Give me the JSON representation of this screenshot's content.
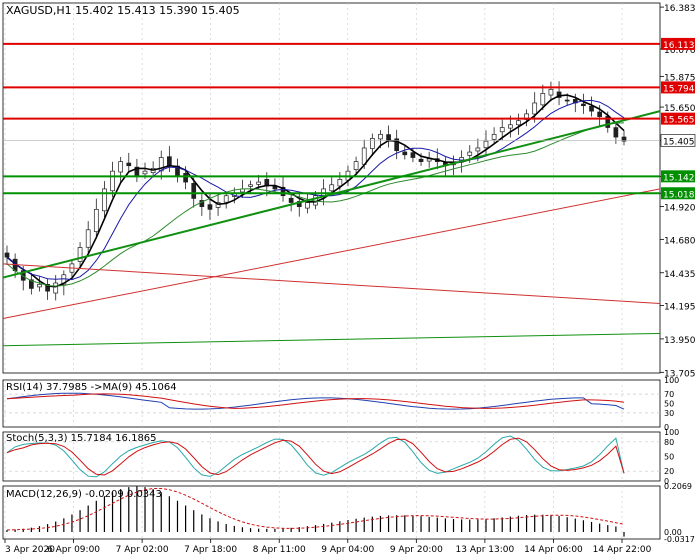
{
  "chart_data": {
    "type": "line",
    "title": "XAGUSD,H1  15.402 15.413 15.390 15.405",
    "price_panel": {
      "ylim": [
        13.7,
        16.413
      ],
      "y_ticks": [
        "16.383",
        "16.076",
        "15.875",
        "15.650",
        "15.405",
        "15.142",
        "15.018",
        "14.920",
        "14.680",
        "14.435",
        "14.195",
        "13.950",
        "13.705"
      ],
      "current_price": "15.405",
      "horizontal_levels": [
        {
          "price": 16.113,
          "label": "16.113",
          "color": "#e00000"
        },
        {
          "price": 15.794,
          "label": "15.794",
          "color": "#e00000"
        },
        {
          "price": 15.565,
          "label": "15.565",
          "color": "#e00000"
        },
        {
          "price": 15.142,
          "label": "15.142",
          "color": "#009000"
        },
        {
          "price": 15.018,
          "label": "15.018",
          "color": "#009000"
        }
      ],
      "close_series": [
        14.55,
        14.45,
        14.38,
        14.32,
        14.35,
        14.3,
        14.36,
        14.42,
        14.5,
        14.62,
        14.75,
        14.9,
        15.05,
        15.18,
        15.25,
        15.22,
        15.15,
        15.18,
        15.2,
        15.28,
        15.22,
        15.15,
        15.1,
        14.98,
        14.92,
        14.9,
        14.95,
        15.0,
        15.02,
        15.05,
        15.08,
        15.1,
        15.07,
        15.05,
        15.0,
        14.95,
        14.92,
        14.95,
        15.0,
        15.05,
        15.08,
        15.12,
        15.18,
        15.25,
        15.35,
        15.42,
        15.45,
        15.4,
        15.33,
        15.3,
        15.28,
        15.25,
        15.27,
        15.25,
        15.22,
        15.24,
        15.28,
        15.32,
        15.35,
        15.4,
        15.45,
        15.5,
        15.52,
        15.55,
        15.6,
        15.68,
        15.75,
        15.78,
        15.72,
        15.7,
        15.68,
        15.66,
        15.62,
        15.58,
        15.5,
        15.43,
        15.4
      ],
      "ma_black_start": [
        14.4,
        14.6
      ],
      "trendlines": [
        {
          "color": "#109010",
          "from_price": 14.4,
          "to_price": 15.62
        },
        {
          "color": "#d03030",
          "from_price": 14.5,
          "to_price": 14.21
        },
        {
          "color": "#d03030",
          "from_price": 14.1,
          "to_price": 15.05
        },
        {
          "color": "#109010",
          "from_price": 13.9,
          "to_price": 13.99
        }
      ]
    },
    "rsi": {
      "label": "RSI(14) 37.7985  ->MA(9) 45.1064",
      "ylim": [
        0,
        100
      ],
      "ticks": [
        "100",
        "70",
        "50",
        "30",
        "0"
      ],
      "levels": [
        70,
        30
      ],
      "rsi_last": 37.7985,
      "ma_last": 45.1064
    },
    "stoch": {
      "label": "Stoch(5,3,3) 15.7184 16.1865",
      "ylim": [
        0,
        100
      ],
      "ticks": [
        "100",
        "80",
        "50",
        "20",
        "0"
      ],
      "levels": [
        80,
        20
      ],
      "k_last": 15.7184,
      "d_last": 16.1865
    },
    "macd": {
      "label": "MACD(12,26,9) -0.0209 0.0343",
      "ticks": [
        "0.2069",
        "0.00",
        "-0.0317"
      ],
      "main_last": -0.0209,
      "signal_last": 0.0343
    },
    "x_ticks": [
      "3 Apr 2020",
      "6 Apr 09:00",
      "7 Apr 02:00",
      "7 Apr 18:00",
      "8 Apr 11:00",
      "9 Apr 04:00",
      "9 Apr 20:00",
      "13 Apr 13:00",
      "14 Apr 06:00",
      "14 Apr 22:00"
    ]
  },
  "colors": {
    "grid": "#c8c8c8",
    "candle": "#202020",
    "ma_black": "#000000",
    "ma_blue": "#1a1aa8",
    "ma_green": "#2e8b2e",
    "ma_red": "#c82828",
    "level_red": "#e00000",
    "level_green": "#009000",
    "label_bg": "#e00000",
    "rsi_line": "#2040b0",
    "rsi_ma": "#d01010",
    "stoch_k": "#2aa8a8",
    "stoch_d": "#d01010",
    "macd_hist": "#000000",
    "macd_signal": "#d01010"
  }
}
